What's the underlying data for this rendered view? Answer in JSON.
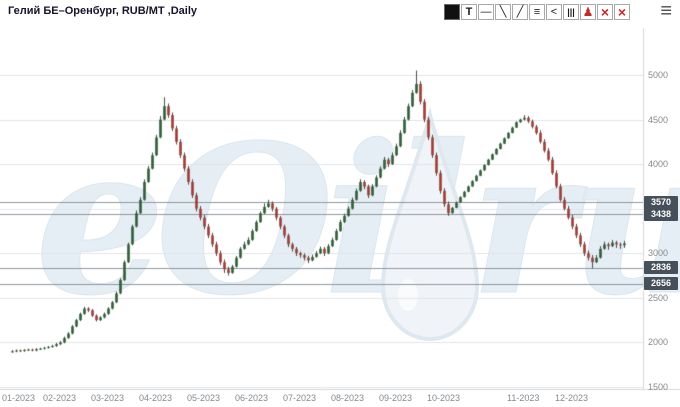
{
  "header": {
    "title": "Гелий БЕ–Оренбург, RUB/MT ,Daily"
  },
  "toolbar": {
    "buttons": [
      {
        "name": "color-swatch",
        "glyph": "■"
      },
      {
        "name": "text-tool",
        "glyph": "T"
      },
      {
        "name": "horizontal-line-tool",
        "glyph": "—"
      },
      {
        "name": "trend-line-tool",
        "glyph": "╲"
      },
      {
        "name": "ray-tool",
        "glyph": "╱"
      },
      {
        "name": "lines-list-tool",
        "glyph": "≡"
      },
      {
        "name": "zigzag-tool",
        "glyph": "<"
      },
      {
        "name": "bars-tool",
        "glyph": "|||"
      },
      {
        "name": "alert-tool",
        "glyph": "♟",
        "color": "#c62828"
      },
      {
        "name": "delete-line-tool",
        "glyph": "×",
        "color": "#c62828"
      },
      {
        "name": "delete-all-tool",
        "glyph": "×",
        "color": "#c62828"
      }
    ],
    "menu_glyph": "≡"
  },
  "watermark": {
    "text_left": "eOil",
    "text_right": "ru"
  },
  "chart_data": {
    "type": "candlestick",
    "title": "Гелий БЕ–Оренбург, RUB/MT ,Daily",
    "symbol": "Гелий БЕ–Оренбург",
    "unit": "RUB/MT",
    "timeframe": "Daily",
    "ylim": [
      1500,
      5100
    ],
    "grid": true,
    "y_ticks": [
      5000,
      4500,
      4000,
      3500,
      3000,
      2500,
      2000,
      1500
    ],
    "price_lines": [
      3570,
      3438,
      2836,
      2656
    ],
    "x_ticks": [
      {
        "label": "01-2023",
        "index": 0
      },
      {
        "label": "02-2023",
        "index": 12
      },
      {
        "label": "03-2023",
        "index": 24
      },
      {
        "label": "04-2023",
        "index": 36
      },
      {
        "label": "05-2023",
        "index": 48
      },
      {
        "label": "06-2023",
        "index": 60
      },
      {
        "label": "07-2023",
        "index": 72
      },
      {
        "label": "08-2023",
        "index": 84
      },
      {
        "label": "09-2023",
        "index": 96
      },
      {
        "label": "10-2023",
        "index": 108
      },
      {
        "label": "11-2023",
        "index": 128
      },
      {
        "label": "12-2023",
        "index": 140
      }
    ],
    "colors": {
      "up": "#2f5c35",
      "down": "#9c3b34",
      "wick": "#44504a",
      "grid": "#e2e5e8",
      "price_line": "#8f979e",
      "axis_text": "#86898d",
      "badge_bg": "#46505a",
      "badge_text": "#ffffff"
    },
    "candles": [
      [
        1895,
        1915,
        1885,
        1900
      ],
      [
        1900,
        1920,
        1890,
        1910
      ],
      [
        1910,
        1920,
        1895,
        1905
      ],
      [
        1905,
        1925,
        1895,
        1915
      ],
      [
        1915,
        1930,
        1905,
        1920
      ],
      [
        1920,
        1930,
        1900,
        1910
      ],
      [
        1910,
        1935,
        1900,
        1925
      ],
      [
        1925,
        1940,
        1915,
        1930
      ],
      [
        1930,
        1950,
        1920,
        1940
      ],
      [
        1940,
        1960,
        1930,
        1950
      ],
      [
        1950,
        1975,
        1940,
        1960
      ],
      [
        1960,
        1995,
        1950,
        1980
      ],
      [
        1980,
        2015,
        1970,
        2000
      ],
      [
        2000,
        2065,
        1990,
        2050
      ],
      [
        2050,
        2115,
        2040,
        2100
      ],
      [
        2100,
        2195,
        2090,
        2180
      ],
      [
        2180,
        2265,
        2170,
        2250
      ],
      [
        2250,
        2335,
        2240,
        2320
      ],
      [
        2320,
        2400,
        2310,
        2380
      ],
      [
        2380,
        2395,
        2340,
        2360
      ],
      [
        2360,
        2375,
        2285,
        2300
      ],
      [
        2300,
        2315,
        2235,
        2250
      ],
      [
        2250,
        2295,
        2240,
        2280
      ],
      [
        2280,
        2335,
        2270,
        2320
      ],
      [
        2320,
        2395,
        2310,
        2380
      ],
      [
        2380,
        2465,
        2370,
        2450
      ],
      [
        2450,
        2570,
        2440,
        2550
      ],
      [
        2550,
        2720,
        2540,
        2700
      ],
      [
        2700,
        2920,
        2690,
        2900
      ],
      [
        2900,
        3120,
        2890,
        3100
      ],
      [
        3100,
        3320,
        3090,
        3300
      ],
      [
        3300,
        3480,
        3290,
        3450
      ],
      [
        3450,
        3630,
        3440,
        3600
      ],
      [
        3600,
        3830,
        3590,
        3800
      ],
      [
        3800,
        3980,
        3790,
        3950
      ],
      [
        3950,
        4130,
        3940,
        4100
      ],
      [
        4100,
        4330,
        4090,
        4300
      ],
      [
        4300,
        4540,
        4290,
        4500
      ],
      [
        4500,
        4750,
        4490,
        4650
      ],
      [
        4650,
        4680,
        4520,
        4550
      ],
      [
        4550,
        4580,
        4370,
        4400
      ],
      [
        4400,
        4430,
        4220,
        4250
      ],
      [
        4250,
        4280,
        4070,
        4100
      ],
      [
        4100,
        4130,
        3920,
        3950
      ],
      [
        3950,
        3980,
        3770,
        3800
      ],
      [
        3800,
        3830,
        3620,
        3650
      ],
      [
        3650,
        3680,
        3470,
        3500
      ],
      [
        3500,
        3530,
        3370,
        3400
      ],
      [
        3400,
        3430,
        3270,
        3300
      ],
      [
        3300,
        3330,
        3170,
        3200
      ],
      [
        3200,
        3230,
        3070,
        3100
      ],
      [
        3100,
        3130,
        2970,
        3000
      ],
      [
        3000,
        3030,
        2870,
        2900
      ],
      [
        2900,
        2930,
        2780,
        2820
      ],
      [
        2820,
        2850,
        2750,
        2780
      ],
      [
        2780,
        2870,
        2770,
        2850
      ],
      [
        2850,
        2970,
        2840,
        2950
      ],
      [
        2950,
        3070,
        2940,
        3050
      ],
      [
        3050,
        3130,
        3040,
        3100
      ],
      [
        3100,
        3180,
        3090,
        3150
      ],
      [
        3150,
        3270,
        3140,
        3250
      ],
      [
        3250,
        3370,
        3240,
        3350
      ],
      [
        3350,
        3470,
        3340,
        3450
      ],
      [
        3450,
        3560,
        3440,
        3520
      ],
      [
        3520,
        3600,
        3510,
        3560
      ],
      [
        3560,
        3580,
        3470,
        3500
      ],
      [
        3500,
        3520,
        3370,
        3400
      ],
      [
        3400,
        3420,
        3270,
        3300
      ],
      [
        3300,
        3320,
        3170,
        3200
      ],
      [
        3200,
        3220,
        3070,
        3100
      ],
      [
        3100,
        3120,
        3020,
        3050
      ],
      [
        3050,
        3070,
        2970,
        3000
      ],
      [
        3000,
        3020,
        2950,
        2980
      ],
      [
        2980,
        3000,
        2920,
        2950
      ],
      [
        2950,
        2970,
        2890,
        2920
      ],
      [
        2920,
        2985,
        2910,
        2960
      ],
      [
        2960,
        3025,
        2950,
        3000
      ],
      [
        3000,
        3075,
        2990,
        3050
      ],
      [
        3050,
        3070,
        2970,
        3000
      ],
      [
        3000,
        3105,
        2990,
        3080
      ],
      [
        3080,
        3175,
        3070,
        3150
      ],
      [
        3150,
        3275,
        3140,
        3250
      ],
      [
        3250,
        3375,
        3240,
        3350
      ],
      [
        3350,
        3445,
        3340,
        3420
      ],
      [
        3420,
        3525,
        3410,
        3500
      ],
      [
        3500,
        3625,
        3490,
        3600
      ],
      [
        3600,
        3725,
        3590,
        3700
      ],
      [
        3700,
        3830,
        3690,
        3800
      ],
      [
        3800,
        3820,
        3720,
        3750
      ],
      [
        3750,
        3770,
        3620,
        3650
      ],
      [
        3650,
        3775,
        3640,
        3750
      ],
      [
        3750,
        3875,
        3740,
        3850
      ],
      [
        3850,
        3975,
        3840,
        3950
      ],
      [
        3950,
        4080,
        3940,
        4050
      ],
      [
        4050,
        4070,
        3970,
        4000
      ],
      [
        4000,
        4130,
        3990,
        4100
      ],
      [
        4100,
        4230,
        4090,
        4200
      ],
      [
        4200,
        4380,
        4190,
        4350
      ],
      [
        4350,
        4530,
        4340,
        4500
      ],
      [
        4500,
        4680,
        4490,
        4650
      ],
      [
        4650,
        4830,
        4640,
        4800
      ],
      [
        4800,
        5050,
        4790,
        4900
      ],
      [
        4900,
        4930,
        4670,
        4700
      ],
      [
        4700,
        4730,
        4470,
        4500
      ],
      [
        4500,
        4530,
        4270,
        4300
      ],
      [
        4300,
        4330,
        4070,
        4100
      ],
      [
        4100,
        4130,
        3870,
        3900
      ],
      [
        3900,
        3930,
        3670,
        3700
      ],
      [
        3700,
        3730,
        3520,
        3550
      ],
      [
        3550,
        3580,
        3420,
        3450
      ],
      [
        3450,
        3520,
        3445,
        3510
      ],
      [
        3510,
        3580,
        3505,
        3570
      ],
      [
        3570,
        3640,
        3565,
        3630
      ],
      [
        3630,
        3700,
        3625,
        3690
      ],
      [
        3690,
        3760,
        3685,
        3750
      ],
      [
        3750,
        3820,
        3745,
        3810
      ],
      [
        3810,
        3880,
        3805,
        3870
      ],
      [
        3870,
        3940,
        3865,
        3930
      ],
      [
        3930,
        4000,
        3925,
        3990
      ],
      [
        3990,
        4060,
        3985,
        4050
      ],
      [
        4050,
        4120,
        4045,
        4110
      ],
      [
        4110,
        4180,
        4105,
        4170
      ],
      [
        4170,
        4240,
        4165,
        4230
      ],
      [
        4230,
        4300,
        4225,
        4290
      ],
      [
        4290,
        4360,
        4285,
        4350
      ],
      [
        4350,
        4420,
        4345,
        4410
      ],
      [
        4410,
        4480,
        4405,
        4470
      ],
      [
        4470,
        4510,
        4465,
        4500
      ],
      [
        4500,
        4550,
        4490,
        4520
      ],
      [
        4520,
        4540,
        4460,
        4480
      ],
      [
        4480,
        4500,
        4400,
        4420
      ],
      [
        4420,
        4440,
        4330,
        4350
      ],
      [
        4350,
        4380,
        4230,
        4250
      ],
      [
        4250,
        4280,
        4130,
        4150
      ],
      [
        4150,
        4180,
        4030,
        4050
      ],
      [
        4050,
        4080,
        3880,
        3900
      ],
      [
        3900,
        3930,
        3730,
        3750
      ],
      [
        3750,
        3780,
        3580,
        3600
      ],
      [
        3600,
        3630,
        3480,
        3500
      ],
      [
        3500,
        3530,
        3380,
        3400
      ],
      [
        3400,
        3430,
        3270,
        3300
      ],
      [
        3300,
        3330,
        3170,
        3200
      ],
      [
        3200,
        3230,
        3070,
        3100
      ],
      [
        3100,
        3130,
        2970,
        3000
      ],
      [
        3000,
        3030,
        2920,
        2950
      ],
      [
        2950,
        2980,
        2830,
        2900
      ],
      [
        2900,
        2980,
        2890,
        2950
      ],
      [
        2950,
        3080,
        2940,
        3050
      ],
      [
        3050,
        3130,
        3040,
        3100
      ],
      [
        3100,
        3120,
        3040,
        3080
      ],
      [
        3080,
        3150,
        3070,
        3120
      ],
      [
        3120,
        3140,
        3060,
        3100
      ],
      [
        3100,
        3120,
        3050,
        3090
      ],
      [
        3090,
        3140,
        3060,
        3110
      ]
    ]
  }
}
